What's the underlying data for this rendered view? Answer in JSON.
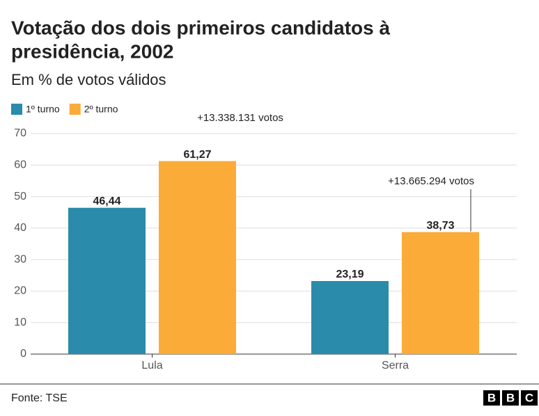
{
  "chart_data": {
    "type": "bar",
    "title": [
      "Votação dos dois primeiros candidatos à",
      "presidência, 2002"
    ],
    "subtitle": "Em % de votos válidos",
    "categories": [
      "Lula",
      "Serra"
    ],
    "series": [
      {
        "name": "1º turno",
        "color": "#2a8bab",
        "values": [
          46.44,
          23.19
        ],
        "value_labels": [
          "46,44",
          "23,19"
        ]
      },
      {
        "name": "2º turno",
        "color": "#fbab37",
        "values": [
          61.27,
          38.73
        ],
        "value_labels": [
          "61,27",
          "38,73"
        ]
      }
    ],
    "annotations": [
      "+13.338.131 votos",
      "+13.665.294 votos"
    ],
    "ylim": [
      0,
      70
    ],
    "yticks": [
      0,
      10,
      20,
      30,
      40,
      50,
      60,
      70
    ],
    "grid": true,
    "source": "Fonte: TSE",
    "brand": [
      "B",
      "B",
      "C"
    ]
  }
}
